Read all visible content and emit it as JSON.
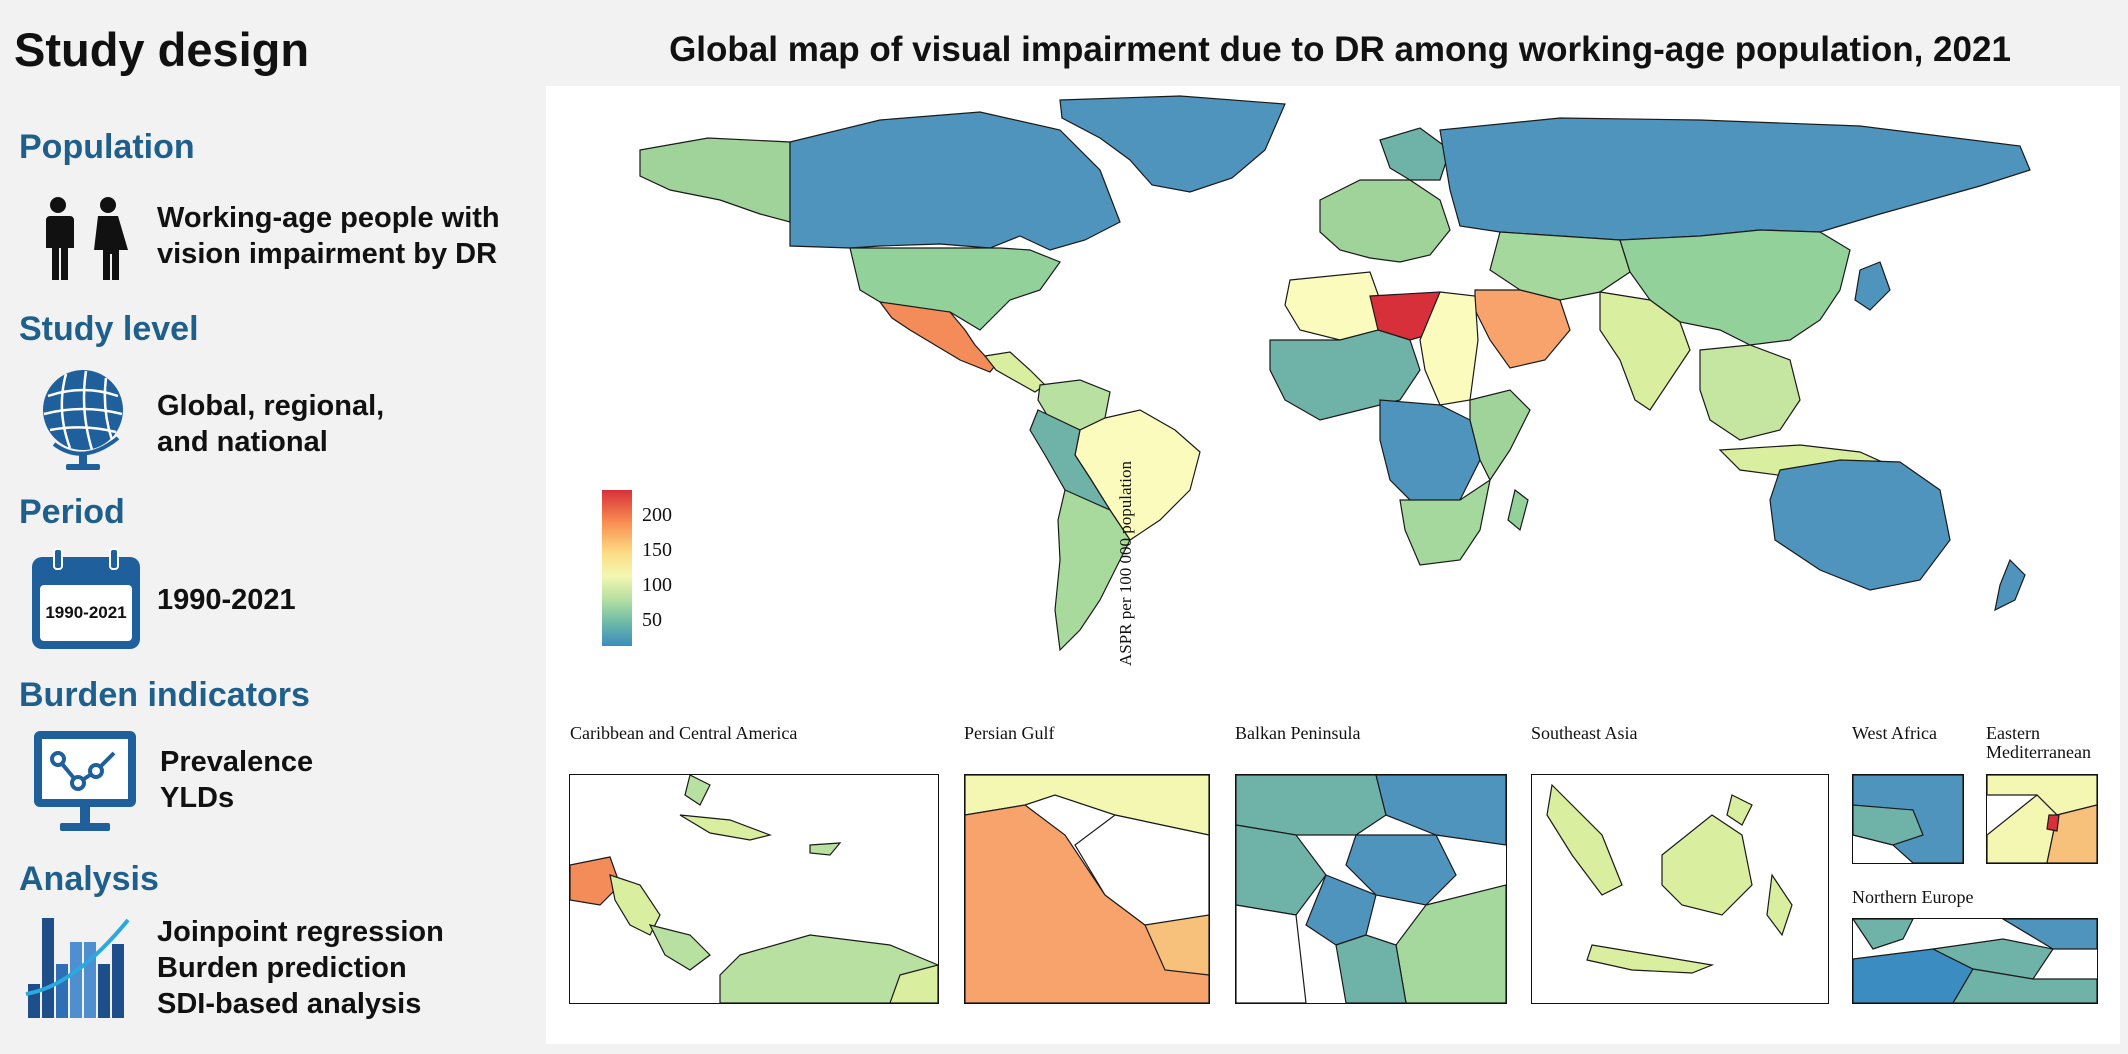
{
  "left_panel": {
    "title": "Study design",
    "sections": [
      {
        "heading": "Population",
        "lines": [
          "Working-age people with",
          "vision impairment by DR"
        ],
        "icon": "people-icon"
      },
      {
        "heading": "Study level",
        "lines": [
          "Global, regional,",
          "and national"
        ],
        "icon": "globe-icon"
      },
      {
        "heading": "Period",
        "lines": [
          "1990-2021"
        ],
        "icon": "calendar-icon",
        "icon_text": "1990-2021"
      },
      {
        "heading": "Burden indicators",
        "lines": [
          "Prevalence",
          "YLDs"
        ],
        "icon": "monitor-chart-icon"
      },
      {
        "heading": "Analysis",
        "lines": [
          "Joinpoint regression",
          "Burden prediction",
          "SDI-based analysis"
        ],
        "icon": "bar-trend-icon"
      }
    ]
  },
  "map": {
    "title": "Global map of visual impairment due to DR among working-age population, 2021",
    "legend": {
      "title": "ASPR per 100 000 population",
      "ticks": [
        "200",
        "150",
        "100",
        "50"
      ],
      "colors": [
        "#d7303a",
        "#f78b4f",
        "#fddb84",
        "#f3f7b1",
        "#b5e0a2",
        "#6dbaa6",
        "#3b8cc0"
      ]
    },
    "insets": [
      {
        "label": "Caribbean and Central America"
      },
      {
        "label": "Persian Gulf"
      },
      {
        "label": "Balkan Peninsula"
      },
      {
        "label": "Southeast Asia"
      },
      {
        "label": "West Africa"
      },
      {
        "label": "Eastern Mediterranean"
      },
      {
        "label": "Northern Europe"
      }
    ]
  }
}
